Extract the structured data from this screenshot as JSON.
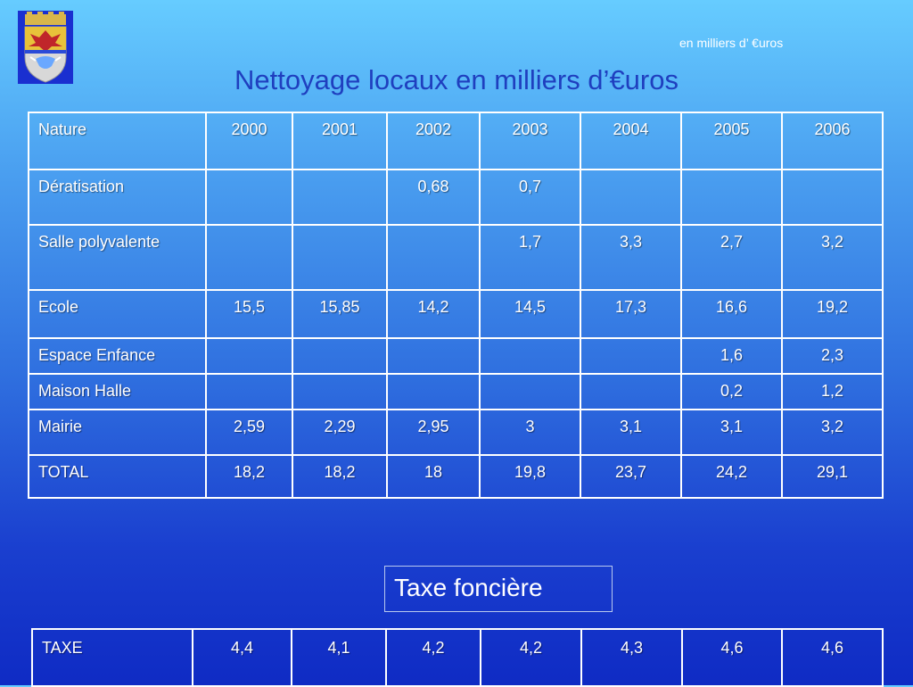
{
  "units_note": "en milliers d’ €uros",
  "title": "Nettoyage locaux en milliers d’€uros",
  "colors": {
    "title": "#1f3fbf",
    "text": "#ffffff",
    "grid": "#ffffff"
  },
  "main_table": {
    "headers": [
      "Nature",
      "2000",
      "2001",
      "2002",
      "2003",
      "2004",
      "2005",
      "2006"
    ],
    "rows": [
      [
        "Dératisation",
        "",
        "",
        "0,68",
        "0,7",
        "",
        "",
        ""
      ],
      [
        "Salle polyvalente",
        "",
        "",
        "",
        "1,7",
        "3,3",
        "2,7",
        "3,2"
      ],
      [
        "Ecole",
        "15,5",
        "15,85",
        "14,2",
        "14,5",
        "17,3",
        "16,6",
        "19,2"
      ],
      [
        "Espace Enfance",
        "",
        "",
        "",
        "",
        "",
        "1,6",
        "2,3"
      ],
      [
        "Maison Halle",
        "",
        "",
        "",
        "",
        "",
        "0,2",
        "1,2"
      ],
      [
        "Mairie",
        "2,59",
        "2,29",
        "2,95",
        "3",
        "3,1",
        "3,1",
        "3,2"
      ],
      [
        "TOTAL",
        "18,2",
        "18,2",
        "18",
        "19,8",
        "23,7",
        "24,2",
        "29,1"
      ]
    ]
  },
  "taxe_label": "Taxe foncière",
  "tax_table": {
    "rows": [
      [
        "TAXE",
        "4,4",
        "4,1",
        "4,2",
        "4,2",
        "4,3",
        "4,6",
        "4,6"
      ]
    ]
  },
  "crest_icon": "coat-of-arms-icon"
}
